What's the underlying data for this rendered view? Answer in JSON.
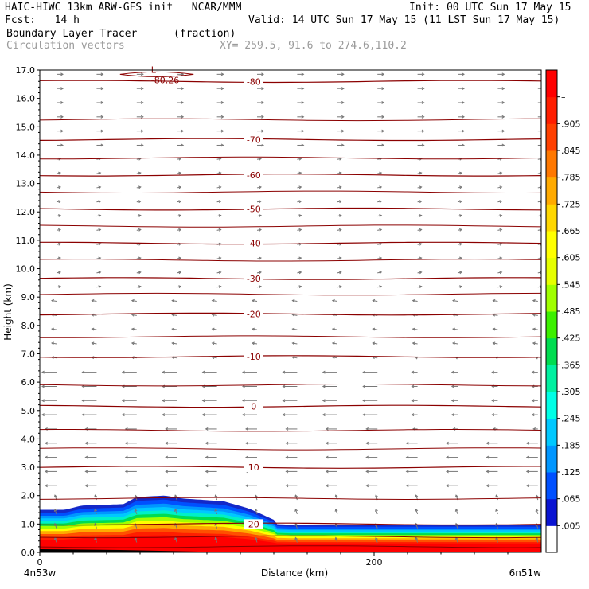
{
  "header": {
    "line1_left": "HAIC-HIWC 13km ARW-GFS init   NCAR/MMM",
    "line1_right": "Init: 00 UTC Sun 17 May 15",
    "line2_left": "Fcst:   14 h",
    "line2_right": "Valid: 14 UTC Sun 17 May 15 (11 LST Sun 17 May 15)",
    "line3_left": "Boundary Layer Tracer",
    "line3_mid": "(fraction)",
    "line4_left": "Circulation vectors",
    "line4_mid": "XY= 259.5, 91.6 to 274.6,110.2"
  },
  "chart_data": {
    "type": "heatmap",
    "ylabel": "Height (km)",
    "xlabel": "Distance (km)",
    "ylim": [
      0,
      17
    ],
    "xlim": [
      0,
      300
    ],
    "y_ticks": [
      "0.0",
      "1.0",
      "2.0",
      "3.0",
      "4.0",
      "5.0",
      "6.0",
      "7.0",
      "8.0",
      "9.0",
      "10.0",
      "11.0",
      "12.0",
      "13.0",
      "14.0",
      "15.0",
      "16.0",
      "17.0"
    ],
    "x_ticks": [
      "0",
      "200"
    ],
    "x_end_labels": {
      "left": "4n53w",
      "right": "6n51w"
    },
    "colorbar": {
      "labels": [
        ".005",
        ".065",
        ".125",
        ".185",
        ".245",
        ".305",
        ".365",
        ".425",
        ".485",
        ".545",
        ".605",
        ".665",
        ".725",
        ".785",
        ".845",
        ".905",
        "–"
      ],
      "colors": [
        "#ffffff",
        "#0a14d2",
        "#0050ff",
        "#0096ff",
        "#00c8ff",
        "#00ffe6",
        "#00f0a0",
        "#00dc50",
        "#3cf000",
        "#a0ff00",
        "#e6ff00",
        "#ffff00",
        "#ffd700",
        "#ffaa00",
        "#ff7800",
        "#ff4000",
        "#ff1e00",
        "#ff0000"
      ]
    },
    "temperature_contours": [
      {
        "label": "20",
        "y_km": 1.0
      },
      {
        "label": "10",
        "y_km": 3.0
      },
      {
        "label": "0",
        "y_km": 5.15
      },
      {
        "label": "-10",
        "y_km": 6.9
      },
      {
        "label": "-20",
        "y_km": 8.4
      },
      {
        "label": "-30",
        "y_km": 9.65
      },
      {
        "label": "-40",
        "y_km": 10.9
      },
      {
        "label": "-50",
        "y_km": 12.1
      },
      {
        "label": "-60",
        "y_km": 13.3
      },
      {
        "label": "-70",
        "y_km": 14.55
      },
      {
        "label": "-80",
        "y_km": 16.6
      }
    ],
    "extra_contour_y_km": [
      0.2,
      0.55,
      1.9,
      3.65,
      4.3,
      5.9,
      7.6,
      9.1,
      10.3,
      11.5,
      12.7,
      13.9,
      15.25
    ],
    "low_marker": {
      "label": "L",
      "value": "-80.26"
    },
    "boundary_layer_top_km": [
      {
        "x": 0,
        "y": 1.5
      },
      {
        "x": 15,
        "y": 1.5
      },
      {
        "x": 25,
        "y": 1.65
      },
      {
        "x": 50,
        "y": 1.7
      },
      {
        "x": 58,
        "y": 1.95
      },
      {
        "x": 75,
        "y": 2.0
      },
      {
        "x": 85,
        "y": 1.9
      },
      {
        "x": 110,
        "y": 1.8
      },
      {
        "x": 125,
        "y": 1.55
      },
      {
        "x": 140,
        "y": 1.15
      },
      {
        "x": 150,
        "y": 1.12
      },
      {
        "x": 300,
        "y": 1.12
      }
    ]
  }
}
